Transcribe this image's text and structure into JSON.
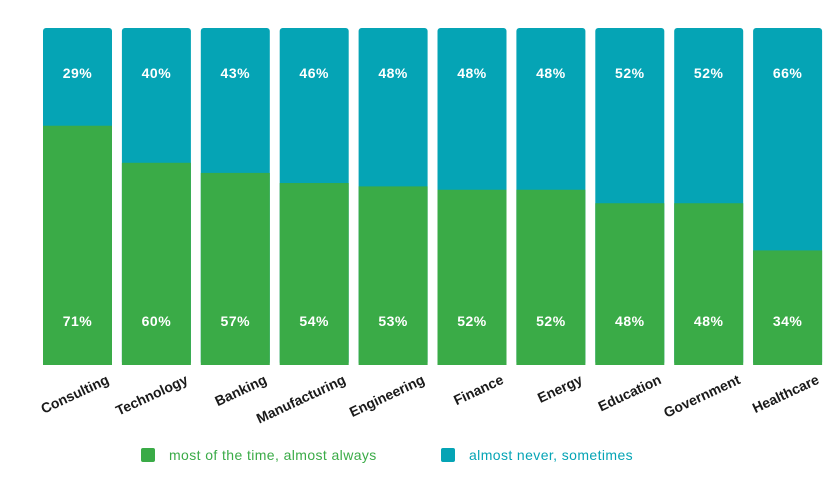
{
  "colors": {
    "primary": "#3aab47",
    "secondary": "#05a4b5",
    "category_text": "#1a1a1a",
    "value_text": "#ffffff"
  },
  "chart_data": {
    "type": "bar",
    "stacked": true,
    "percent": true,
    "categories": [
      "Consulting",
      "Technology",
      "Banking",
      "Manufacturing",
      "Engineering",
      "Finance",
      "Energy",
      "Education",
      "Government",
      "Healthcare"
    ],
    "series": [
      {
        "name": "most of the time, almost always",
        "values": [
          71,
          60,
          57,
          54,
          53,
          52,
          52,
          48,
          48,
          34
        ],
        "labels": [
          "71%",
          "60%",
          "57%",
          "54%",
          "53%",
          "52%",
          "52%",
          "48%",
          "48%",
          "34%"
        ]
      },
      {
        "name": "almost never, sometimes",
        "values": [
          29,
          40,
          43,
          46,
          48,
          48,
          48,
          52,
          52,
          66
        ],
        "labels": [
          "29%",
          "40%",
          "43%",
          "46%",
          "48%",
          "48%",
          "48%",
          "52%",
          "52%",
          "66%"
        ]
      }
    ],
    "ylim": [
      0,
      100
    ],
    "grid": false,
    "legend_position": "bottom"
  }
}
